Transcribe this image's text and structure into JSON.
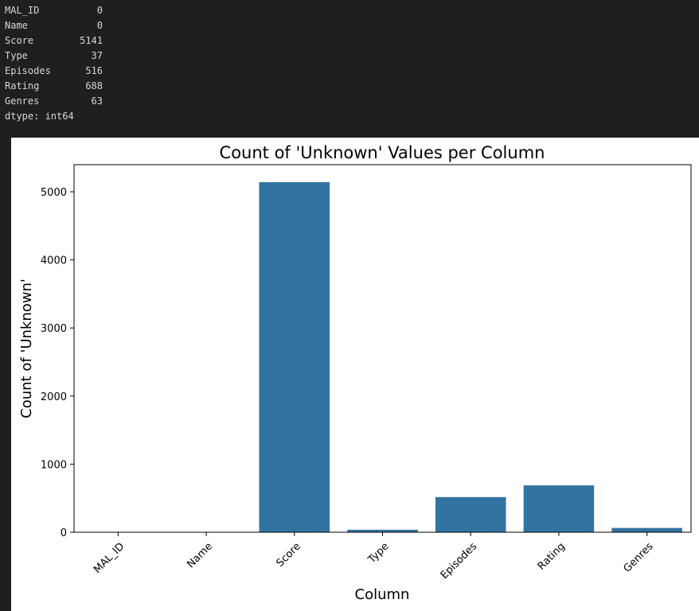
{
  "console": {
    "rows": [
      {
        "name": "MAL_ID",
        "value": "0"
      },
      {
        "name": "Name",
        "value": "0"
      },
      {
        "name": "Score",
        "value": "5141"
      },
      {
        "name": "Type",
        "value": "37"
      },
      {
        "name": "Episodes",
        "value": "516"
      },
      {
        "name": "Rating",
        "value": "688"
      },
      {
        "name": "Genres",
        "value": "63"
      }
    ],
    "dtype": "dtype: int64"
  },
  "chart_data": {
    "type": "bar",
    "title": "Count of 'Unknown' Values per Column",
    "xlabel": "Column",
    "ylabel": "Count of 'Unknown'",
    "categories": [
      "MAL_ID",
      "Name",
      "Score",
      "Type",
      "Episodes",
      "Rating",
      "Genres"
    ],
    "values": [
      0,
      0,
      5141,
      37,
      516,
      688,
      63
    ],
    "ylim": [
      0,
      5398
    ],
    "yticks": [
      0,
      1000,
      2000,
      3000,
      4000,
      5000
    ],
    "bar_color": "#3274a1",
    "grid": false,
    "legend": "none"
  }
}
